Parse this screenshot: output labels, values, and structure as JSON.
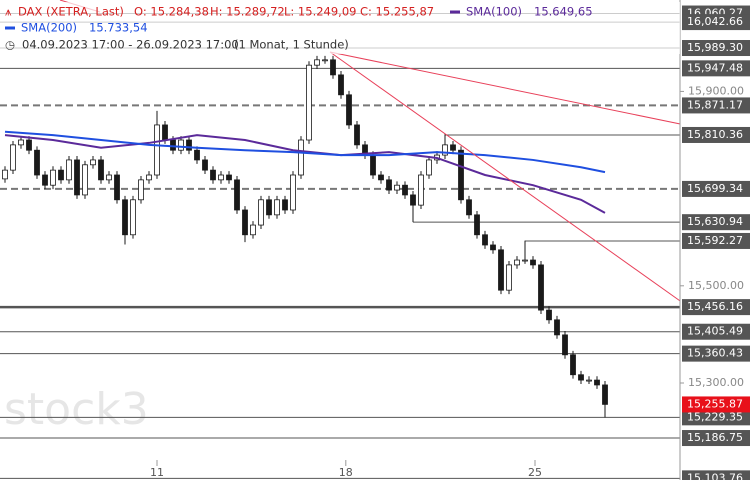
{
  "chart_data": {
    "type": "candlestick",
    "instrument": "DAX (XETRA, Last)",
    "ohlc_labels": [
      "O: 15.284,38",
      "H: 15.289,72",
      "L: 15.249,09",
      "C: 15.255,87"
    ],
    "period": "04.09.2023 17:00 - 26.09.2023 17:00",
    "resolution": "(1 Monat, 1 Stunde)",
    "watermark": "stock3",
    "x": [
      0,
      1,
      2,
      3,
      4,
      5,
      6,
      7,
      8,
      9,
      10,
      11,
      12,
      13,
      14,
      15,
      16,
      17,
      18,
      19,
      20,
      21,
      22,
      23,
      24,
      25,
      26,
      27,
      28,
      29,
      30,
      31,
      32,
      33,
      34,
      35,
      36,
      37,
      38,
      39,
      40,
      41,
      42,
      43,
      44,
      45,
      46,
      47,
      48,
      49,
      50,
      51,
      52,
      53,
      54,
      55,
      56,
      57,
      58,
      59,
      60,
      61,
      62,
      63,
      64,
      65,
      66,
      67,
      68,
      69,
      70,
      71,
      72,
      73,
      74,
      75
    ],
    "open": [
      15720,
      15738,
      15790,
      15800,
      15779,
      15728,
      15707,
      15738,
      15718,
      15759,
      15687,
      15749,
      15759,
      15718,
      15728,
      15677,
      15605,
      15677,
      15718,
      15728,
      15831,
      15800,
      15779,
      15800,
      15779,
      15759,
      15738,
      15718,
      15728,
      15718,
      15656,
      15605,
      15625,
      15677,
      15646,
      15677,
      15656,
      15728,
      15800,
      15954,
      15965,
      15965,
      15934,
      15893,
      15831,
      15790,
      15769,
      15728,
      15718,
      15697,
      15707,
      15687,
      15666,
      15728,
      15759,
      15769,
      15790,
      15779,
      15677,
      15646,
      15605,
      15584,
      15574,
      15491,
      15543,
      15553,
      15553,
      15543,
      15450,
      15430,
      15399,
      15358,
      15317,
      15306,
      15306,
      15296
    ],
    "high": [
      15746,
      15798,
      15808,
      15808,
      15787,
      15736,
      15746,
      15746,
      15767,
      15767,
      15757,
      15767,
      15767,
      15736,
      15736,
      15685,
      15685,
      15726,
      15736,
      15860,
      15839,
      15808,
      15808,
      15808,
      15787,
      15767,
      15746,
      15736,
      15736,
      15726,
      15664,
      15633,
      15685,
      15685,
      15685,
      15685,
      15736,
      15808,
      15962,
      15973,
      15973,
      15973,
      15942,
      15901,
      15839,
      15798,
      15777,
      15736,
      15726,
      15715,
      15715,
      15695,
      15736,
      15767,
      15777,
      15812,
      15798,
      15787,
      15685,
      15654,
      15613,
      15592,
      15582,
      15551,
      15561,
      15593,
      15561,
      15551,
      15458,
      15438,
      15407,
      15366,
      15325,
      15314,
      15314,
      15304
    ],
    "low": [
      15712,
      15730,
      15782,
      15771,
      15720,
      15699,
      15699,
      15710,
      15710,
      15679,
      15679,
      15741,
      15710,
      15710,
      15669,
      15585,
      15597,
      15669,
      15710,
      15720,
      15792,
      15771,
      15771,
      15771,
      15751,
      15730,
      15710,
      15710,
      15710,
      15648,
      15590,
      15597,
      15617,
      15638,
      15638,
      15648,
      15648,
      15720,
      15792,
      15946,
      15957,
      15926,
      15885,
      15823,
      15782,
      15761,
      15720,
      15710,
      15689,
      15689,
      15679,
      15631,
      15658,
      15720,
      15751,
      15761,
      15771,
      15669,
      15638,
      15597,
      15576,
      15566,
      15483,
      15483,
      15535,
      15545,
      15535,
      15442,
      15422,
      15391,
      15350,
      15309,
      15298,
      15298,
      15288,
      15229
    ],
    "close": [
      15738,
      15790,
      15800,
      15779,
      15728,
      15707,
      15738,
      15718,
      15759,
      15687,
      15749,
      15759,
      15718,
      15728,
      15677,
      15605,
      15677,
      15718,
      15728,
      15831,
      15800,
      15779,
      15800,
      15779,
      15759,
      15738,
      15718,
      15728,
      15718,
      15656,
      15605,
      15625,
      15677,
      15646,
      15677,
      15656,
      15728,
      15800,
      15954,
      15965,
      15965,
      15934,
      15893,
      15831,
      15790,
      15769,
      15728,
      15718,
      15697,
      15707,
      15687,
      15666,
      15728,
      15759,
      15769,
      15790,
      15779,
      15677,
      15646,
      15605,
      15584,
      15574,
      15491,
      15543,
      15553,
      15553,
      15543,
      15450,
      15430,
      15399,
      15358,
      15317,
      15306,
      15306,
      15296,
      15256
    ],
    "up_color": "#ffffff",
    "down_color": "#1a1a1a",
    "series": [
      {
        "name": "SMA(100)",
        "value_label": "15.649,65",
        "color": "#5b2a9a",
        "x": [
          0,
          6,
          12,
          18,
          24,
          30,
          36,
          42,
          48,
          54,
          60,
          66,
          72,
          75
        ],
        "values": [
          15810,
          15800,
          15784,
          15794,
          15810,
          15800,
          15779,
          15769,
          15775,
          15763,
          15728,
          15707,
          15677,
          15650
        ]
      },
      {
        "name": "SMA(200)",
        "value_label": "15.733,54",
        "color": "#1f4fe0",
        "x": [
          0,
          6,
          12,
          18,
          24,
          30,
          36,
          42,
          48,
          54,
          60,
          66,
          72,
          75
        ],
        "values": [
          15817,
          15810,
          15800,
          15790,
          15784,
          15779,
          15775,
          15769,
          15769,
          15775,
          15769,
          15759,
          15744,
          15734
        ]
      }
    ],
    "xlim": [
      -0.625,
      84.375
    ],
    "xticks": [
      {
        "value": 19,
        "label": "11"
      },
      {
        "value": 42.6,
        "label": "18"
      },
      {
        "value": 66.25,
        "label": "25"
      }
    ],
    "ylim": [
      15100.4,
      16088.1
    ],
    "yticks": [
      {
        "value": 15900,
        "label": "15,900.00"
      },
      {
        "value": 15500,
        "label": "15,500.00"
      },
      {
        "value": 15300,
        "label": "15,300.00"
      }
    ],
    "levels": [
      {
        "value": 16060.27,
        "label": "16,060.27",
        "style": "solid"
      },
      {
        "value": 16042.66,
        "label": "16,042.66",
        "style": "solid"
      },
      {
        "value": 15989.3,
        "label": "15,989.30",
        "style": "solid"
      },
      {
        "value": 15947.48,
        "label": "15,947.48",
        "style": "solid"
      },
      {
        "value": 15871.17,
        "label": "15,871.17",
        "style": "dashed"
      },
      {
        "value": 15810.36,
        "label": "15,810.36",
        "style": "solid",
        "start": 55
      },
      {
        "value": 15699.34,
        "label": "15,699.34",
        "style": "dashed"
      },
      {
        "value": 15630.94,
        "label": "15,630.94",
        "style": "solid",
        "start": 51
      },
      {
        "value": 15592.27,
        "label": "15,592.27",
        "style": "solid",
        "start": 65
      },
      {
        "value": 15456.16,
        "label": "15,456.16",
        "style": "thick"
      },
      {
        "value": 15405.49,
        "label": "15,405.49",
        "style": "solid"
      },
      {
        "value": 15360.43,
        "label": "15,360.43",
        "style": "solid"
      },
      {
        "value": 15229.35,
        "label": "15,229.35",
        "style": "solid"
      },
      {
        "value": 15186.75,
        "label": "15,186.75",
        "style": "solid"
      },
      {
        "value": 15103.76,
        "label": "15,103.76",
        "style": "solid"
      }
    ],
    "last_price": {
      "value": 15255.87,
      "label": "15,255.87",
      "color": "#e8101a"
    }
  }
}
